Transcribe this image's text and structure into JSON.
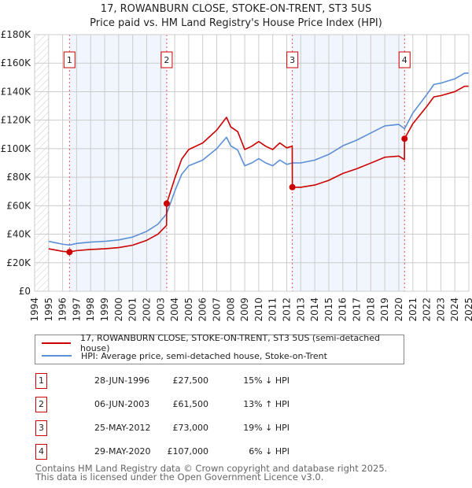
{
  "chart_data": {
    "type": "line",
    "title": "17, ROWANBURN CLOSE, STOKE-ON-TRENT, ST3 5US",
    "subtitle": "Price paid vs. HM Land Registry's House Price Index (HPI)",
    "xlim": [
      1994,
      2025
    ],
    "ylim": [
      0,
      180000
    ],
    "x_ticks": [
      "1994",
      "1995",
      "1996",
      "1997",
      "1998",
      "1999",
      "2000",
      "2001",
      "2002",
      "2003",
      "2004",
      "2005",
      "2006",
      "2007",
      "2008",
      "2009",
      "2010",
      "2011",
      "2012",
      "2013",
      "2014",
      "2015",
      "2016",
      "2017",
      "2018",
      "2019",
      "2020",
      "2021",
      "2022",
      "2023",
      "2024",
      "2025"
    ],
    "y_ticks": [
      {
        "v": 0,
        "label": "£0"
      },
      {
        "v": 20000,
        "label": "£20K"
      },
      {
        "v": 40000,
        "label": "£40K"
      },
      {
        "v": 60000,
        "label": "£60K"
      },
      {
        "v": 80000,
        "label": "£80K"
      },
      {
        "v": 100000,
        "label": "£100K"
      },
      {
        "v": 120000,
        "label": "£120K"
      },
      {
        "v": 140000,
        "label": "£140K"
      },
      {
        "v": 160000,
        "label": "£160K"
      },
      {
        "v": 180000,
        "label": "£180K"
      }
    ],
    "grid": true,
    "series": [
      {
        "name": "17, ROWANBURN CLOSE, STOKE-ON-TRENT, ST3 5US (semi-detached house)",
        "color": "#cc0000",
        "points": [
          [
            1995,
            29.8
          ],
          [
            1995.5,
            28.9
          ],
          [
            1996,
            28
          ],
          [
            1996.49,
            27.5
          ],
          [
            1997,
            28.5
          ],
          [
            1998,
            29.3
          ],
          [
            1999,
            29.8
          ],
          [
            2000,
            30.6
          ],
          [
            2001,
            32.3
          ],
          [
            2002,
            35.7
          ],
          [
            2002.8,
            40
          ],
          [
            2003.42,
            46.2
          ],
          [
            2003.43,
            61.5
          ],
          [
            2004,
            79
          ],
          [
            2004.5,
            92.7
          ],
          [
            2005,
            99.4
          ],
          [
            2006,
            104
          ],
          [
            2006.5,
            108.5
          ],
          [
            2007,
            113
          ],
          [
            2007.7,
            122
          ],
          [
            2008,
            115.3
          ],
          [
            2008.5,
            111.9
          ],
          [
            2009,
            99.4
          ],
          [
            2009.5,
            101.7
          ],
          [
            2010,
            105
          ],
          [
            2010.5,
            101.7
          ],
          [
            2011,
            99.4
          ],
          [
            2011.5,
            104
          ],
          [
            2012,
            100.6
          ],
          [
            2012.39,
            101.7
          ],
          [
            2012.4,
            73
          ],
          [
            2013,
            72.9
          ],
          [
            2014,
            74.5
          ],
          [
            2015,
            77.8
          ],
          [
            2016,
            82.6
          ],
          [
            2017,
            85.9
          ],
          [
            2018,
            89.9
          ],
          [
            2019,
            94
          ],
          [
            2020,
            94.8
          ],
          [
            2020.4,
            92.3
          ],
          [
            2020.41,
            107
          ],
          [
            2021,
            117.5
          ],
          [
            2022,
            129.7
          ],
          [
            2022.5,
            136.3
          ],
          [
            2023,
            137.2
          ],
          [
            2024,
            140
          ],
          [
            2024.7,
            143.8
          ],
          [
            2025,
            143.8
          ]
        ]
      },
      {
        "name": "HPI: Average price, semi-detached house, Stoke-on-Trent",
        "color": "#5b8fd6",
        "points": [
          [
            1995,
            35
          ],
          [
            1995.5,
            34
          ],
          [
            1996,
            33
          ],
          [
            1996.5,
            32.4
          ],
          [
            1997,
            33.5
          ],
          [
            1998,
            34.5
          ],
          [
            1999,
            35
          ],
          [
            2000,
            36
          ],
          [
            2001,
            38
          ],
          [
            2002,
            42
          ],
          [
            2002.8,
            47
          ],
          [
            2003.43,
            54.4
          ],
          [
            2004,
            70
          ],
          [
            2004.5,
            82
          ],
          [
            2005,
            88
          ],
          [
            2006,
            92
          ],
          [
            2006.5,
            96
          ],
          [
            2007,
            100
          ],
          [
            2007.7,
            108
          ],
          [
            2008,
            102
          ],
          [
            2008.5,
            99
          ],
          [
            2009,
            88
          ],
          [
            2009.5,
            90
          ],
          [
            2010,
            93
          ],
          [
            2010.5,
            90
          ],
          [
            2011,
            88
          ],
          [
            2011.5,
            92
          ],
          [
            2012,
            89
          ],
          [
            2012.4,
            90
          ],
          [
            2013,
            90
          ],
          [
            2014,
            92
          ],
          [
            2015,
            96
          ],
          [
            2016,
            102
          ],
          [
            2017,
            106
          ],
          [
            2018,
            111
          ],
          [
            2019,
            116
          ],
          [
            2020,
            117
          ],
          [
            2020.41,
            114
          ],
          [
            2021,
            125
          ],
          [
            2022,
            138
          ],
          [
            2022.5,
            145
          ],
          [
            2023,
            146
          ],
          [
            2024,
            149
          ],
          [
            2024.7,
            153
          ],
          [
            2025,
            153
          ]
        ]
      }
    ],
    "sales": [
      {
        "label": "1",
        "x": 1996.49,
        "price": 27.5
      },
      {
        "label": "2",
        "x": 2003.43,
        "price": 61.5
      },
      {
        "label": "3",
        "x": 2012.4,
        "price": 73
      },
      {
        "label": "4",
        "x": 2020.41,
        "price": 107
      }
    ],
    "shaded_ranges": [
      [
        1996.49,
        2003.43
      ],
      [
        2012.4,
        2020.41
      ]
    ],
    "legend_placement": "bottom"
  },
  "table": [
    {
      "num": "1",
      "date": "28-JUN-1996",
      "price": "£27,500",
      "hpi": "15% ↓ HPI"
    },
    {
      "num": "2",
      "date": "06-JUN-2003",
      "price": "£61,500",
      "hpi": "13% ↑ HPI"
    },
    {
      "num": "3",
      "date": "25-MAY-2012",
      "price": "£73,000",
      "hpi": "19% ↓ HPI"
    },
    {
      "num": "4",
      "date": "29-MAY-2020",
      "price": "£107,000",
      "hpi": "6% ↓ HPI"
    }
  ],
  "footer": {
    "line1": "Contains HM Land Registry data © Crown copyright and database right 2025.",
    "line2": "This data is licensed under the Open Government Licence v3.0."
  }
}
